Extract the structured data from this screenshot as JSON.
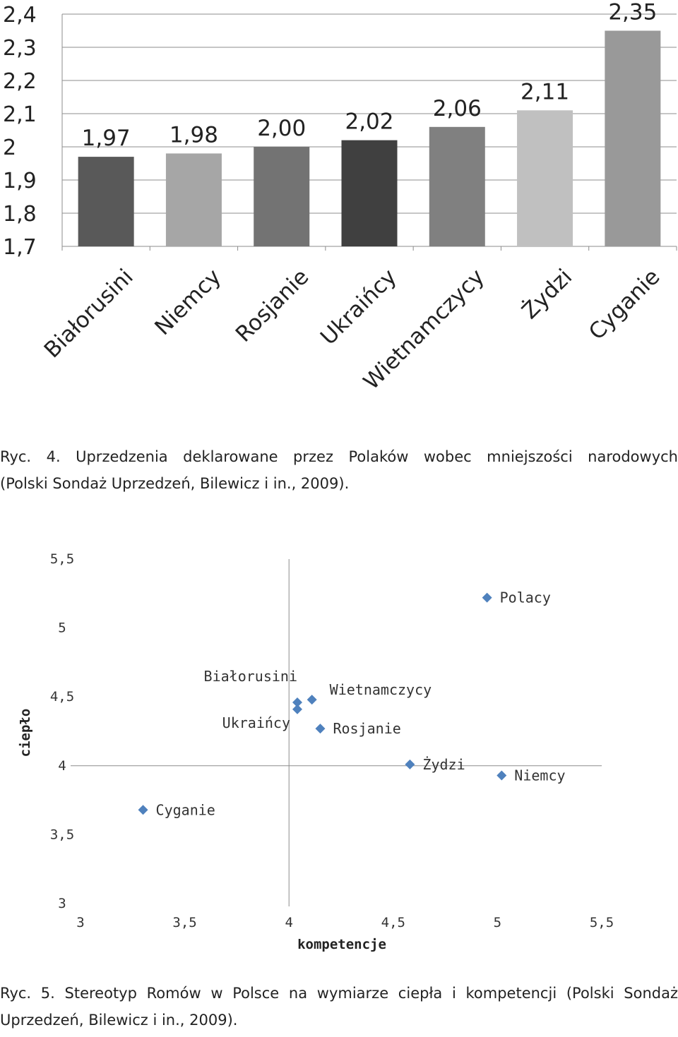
{
  "chart_data": [
    {
      "type": "bar",
      "categories": [
        "Białorusini",
        "Niemcy",
        "Rosjanie",
        "Ukraińcy",
        "Wietnamczycy",
        "Żydzi",
        "Cyganie"
      ],
      "values": [
        1.97,
        1.98,
        2.0,
        2.02,
        2.06,
        2.11,
        2.35
      ],
      "value_labels": [
        "1,97",
        "1,98",
        "2,00",
        "2,02",
        "2,06",
        "2,11",
        "2,35"
      ],
      "bar_colors": [
        "#595959",
        "#a6a6a6",
        "#737373",
        "#404040",
        "#808080",
        "#c0c0c0",
        "#999999"
      ],
      "y_ticks": [
        1.7,
        1.8,
        1.9,
        2.0,
        2.1,
        2.2,
        2.3,
        2.4
      ],
      "y_tick_labels": [
        "1,7",
        "1,8",
        "1,9",
        "2",
        "2,1",
        "2,2",
        "2,3",
        "2,4"
      ],
      "ylim": [
        1.7,
        2.4
      ],
      "title": "",
      "xlabel": "",
      "ylabel": "",
      "grid": true
    },
    {
      "type": "scatter",
      "points": [
        {
          "label": "Polacy",
          "x": 4.95,
          "y": 5.22
        },
        {
          "label": "Białorusini",
          "x": 4.04,
          "y": 4.46
        },
        {
          "label": "Wietnamczycy",
          "x": 4.11,
          "y": 4.48
        },
        {
          "label": "Ukraińcy",
          "x": 4.04,
          "y": 4.41
        },
        {
          "label": "Rosjanie",
          "x": 4.15,
          "y": 4.27
        },
        {
          "label": "Żydzi",
          "x": 4.58,
          "y": 4.01
        },
        {
          "label": "Niemcy",
          "x": 5.02,
          "y": 3.93
        },
        {
          "label": "Cyganie",
          "x": 3.3,
          "y": 3.68
        }
      ],
      "x_ticks": [
        3,
        3.5,
        4,
        4.5,
        5,
        5.5
      ],
      "x_tick_labels": [
        "3",
        "3,5",
        "4",
        "4,5",
        "5",
        "5,5"
      ],
      "y_ticks": [
        3,
        3.5,
        4,
        4.5,
        5,
        5.5
      ],
      "y_tick_labels": [
        "3",
        "3,5",
        "4",
        "4,5",
        "5",
        "5,5"
      ],
      "xlim": [
        3,
        5.5
      ],
      "ylim": [
        3,
        5.5
      ],
      "xlabel": "kompetencje",
      "ylabel": "ciepło",
      "marker_color": "#4f81bd",
      "title": ""
    }
  ],
  "captions": {
    "fig4_line1": "Ryc. 4. Uprzedzenia deklarowane przez Polaków wobec mniejszości narodowych",
    "fig4_line2": "(Polski Sondaż Uprzedzeń, Bilewicz i in., 2009).",
    "fig5_line1": "Ryc. 5. Stereotyp Romów w Polsce na wymiarze ciepła i kompetencji (Polski Sondaż",
    "fig5_line2": "Uprzedzeń, Bilewicz i in., 2009)."
  }
}
